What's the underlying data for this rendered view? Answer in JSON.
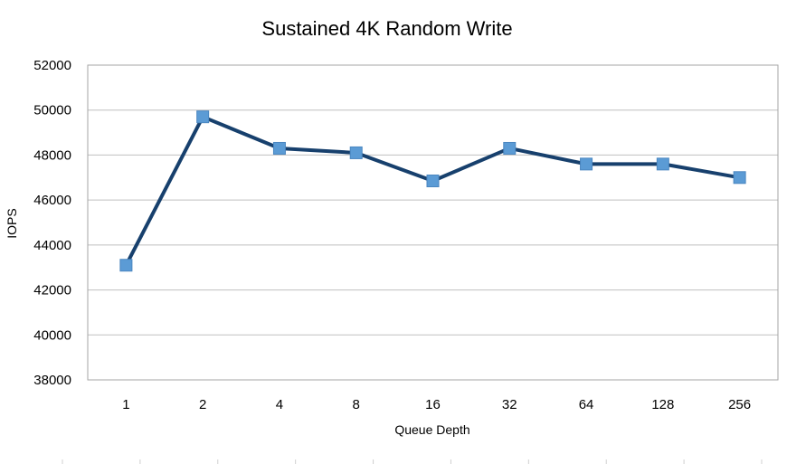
{
  "chart_data": {
    "type": "line",
    "title": "Sustained 4K Random Write",
    "xlabel": "Queue Depth",
    "ylabel": "IOPS",
    "categories": [
      "1",
      "2",
      "4",
      "8",
      "16",
      "32",
      "64",
      "128",
      "256"
    ],
    "series": [
      {
        "values": [
          43100,
          49700,
          48300,
          48100,
          46850,
          48300,
          47600,
          47600,
          47000
        ],
        "line_color": "#17406d",
        "marker_color": "#5b9bd5",
        "marker": "square"
      }
    ],
    "ylim": [
      38000,
      52000
    ],
    "yticks": [
      38000,
      40000,
      42000,
      44000,
      46000,
      48000,
      50000,
      52000
    ],
    "grid": "horizontal",
    "legend": "none"
  }
}
